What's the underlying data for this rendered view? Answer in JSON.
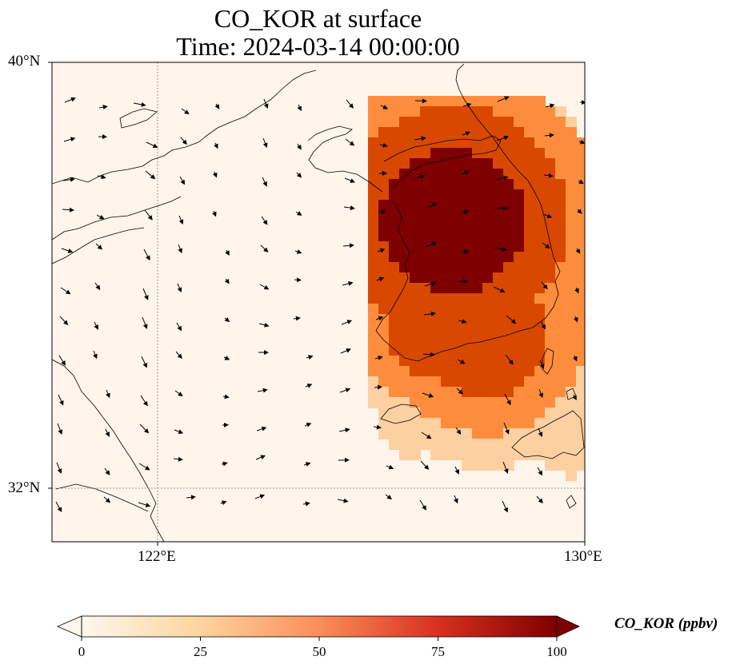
{
  "title": {
    "line1": "CO_KOR at surface",
    "line2": "Time: 2024-03-14 00:00:00"
  },
  "map": {
    "lon_range": [
      118,
      130
    ],
    "lat_range": [
      30.75,
      40
    ],
    "lon_ticks": [
      "122°E",
      "130°E"
    ],
    "lat_ticks": [
      "40°N",
      "32°N"
    ],
    "gridlines": {
      "lon": 122,
      "lat": 32,
      "style": "dotted"
    },
    "field_colors": [
      "#fff5eb",
      "#fdd0a2",
      "#fd8d3c",
      "#d94801",
      "#7f0000"
    ]
  },
  "colorbar": {
    "label": "CO_KOR (ppbv)",
    "ticks": [
      "0",
      "25",
      "50",
      "75",
      "100"
    ],
    "range": [
      0,
      100
    ],
    "extend": "both",
    "cmap": "OrRd"
  }
}
